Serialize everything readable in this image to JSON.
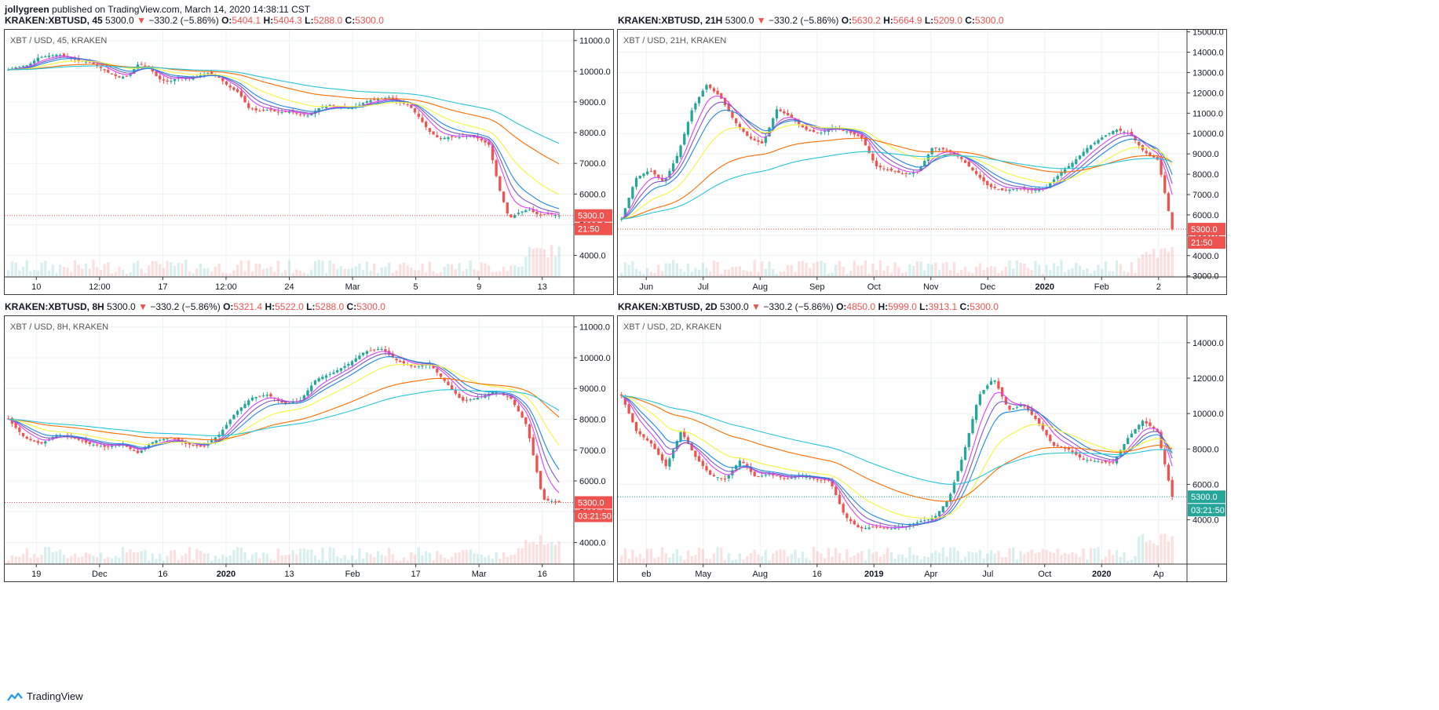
{
  "header": {
    "user": "jollygreen",
    "published": "published on TradingView.com, March 14, 2020 14:38:11 CST"
  },
  "footer": {
    "brand": "TradingView"
  },
  "colors": {
    "down": "#ef5350",
    "up": "#26a69a",
    "ema200": "#26c6da",
    "ema100": "#ff6d00",
    "ema50": "#f5f53b"
  },
  "chart_data": [
    {
      "type": "candlestick",
      "symbol": "KRAKEN:XBTUSD, 45",
      "last": "5300.0",
      "change": "−330.2 (−5.86%)",
      "ohlc": {
        "O": "5404.1",
        "H": "5404.3",
        "L": "5288.0",
        "C": "5300.0"
      },
      "inner_title": "XBT / USD, 45, KRAKEN",
      "y_ticks": [
        "11000.0",
        "10000.0",
        "9000.0",
        "8000.0",
        "7000.0",
        "6000.0",
        "5000.0",
        "4000.0"
      ],
      "ylim": [
        3300,
        11350
      ],
      "x_ticks": [
        "10",
        "12:00",
        "17",
        "12:00",
        "24",
        "Mar",
        "5",
        "9",
        "13"
      ],
      "price_label": "5300.0",
      "countdown": "21:50",
      "label_color": "#ef5350",
      "series_close": [
        10050,
        10150,
        10200,
        10450,
        10500,
        10550,
        10450,
        10350,
        10300,
        10150,
        9950,
        9800,
        9850,
        10250,
        10150,
        9750,
        9650,
        9800,
        9750,
        9850,
        9950,
        9800,
        9500,
        9300,
        8800,
        8700,
        8750,
        8650,
        8700,
        8600,
        8550,
        8800,
        8900,
        8850,
        8800,
        8900,
        9050,
        9100,
        9150,
        9000,
        8900,
        8500,
        8050,
        7800,
        7850,
        7850,
        7900,
        7800,
        7600,
        6200,
        5200,
        5400,
        5500,
        5300,
        5350,
        5300
      ]
    },
    {
      "type": "candlestick",
      "symbol": "KRAKEN:XBTUSD, 21H",
      "last": "5300.0",
      "change": "−330.2 (−5.86%)",
      "ohlc": {
        "O": "5630.2",
        "H": "5664.9",
        "L": "5209.0",
        "C": "5300.0"
      },
      "inner_title": "XBT / USD, 21H, KRAKEN",
      "y_ticks": [
        "15000.0",
        "14000.0",
        "13000.0",
        "12000.0",
        "11000.0",
        "10000.0",
        "9000.0",
        "8000.0",
        "7000.0",
        "6000.0",
        "5000.0",
        "4000.0",
        "3000.0"
      ],
      "ylim": [
        2950,
        15100
      ],
      "x_ticks": [
        "Jun",
        "Jul",
        "Aug",
        "Sep",
        "Oct",
        "Nov",
        "Dec",
        "2020",
        "Feb",
        "2"
      ],
      "price_label": "5300.0",
      "countdown": "21:50",
      "label_color": "#ef5350",
      "series_close": [
        5800,
        7800,
        8200,
        7600,
        9000,
        11200,
        12400,
        11800,
        10600,
        9800,
        9500,
        11200,
        10800,
        10200,
        10000,
        10300,
        10100,
        9800,
        8400,
        8200,
        8000,
        8100,
        9300,
        9200,
        8800,
        8100,
        7400,
        7200,
        7300,
        7200,
        7300,
        8000,
        8600,
        9300,
        9800,
        10200,
        10000,
        9100,
        8700,
        5300
      ]
    },
    {
      "type": "candlestick",
      "symbol": "KRAKEN:XBTUSD, 8H",
      "last": "5300.0",
      "change": "−330.2 (−5.86%)",
      "ohlc": {
        "O": "5321.4",
        "H": "5522.0",
        "L": "5288.0",
        "C": "5300.0"
      },
      "inner_title": "XBT / USD, 8H, KRAKEN",
      "y_ticks": [
        "11000.0",
        "10000.0",
        "9000.0",
        "8000.0",
        "7000.0",
        "6000.0",
        "5000.0",
        "4000.0"
      ],
      "ylim": [
        3300,
        11350
      ],
      "x_ticks": [
        "19",
        "Dec",
        "16",
        "2020",
        "13",
        "Feb",
        "17",
        "Mar",
        "16"
      ],
      "price_label": "5300.0",
      "countdown": "03:21:50",
      "label_color": "#ef5350",
      "series_close": [
        8000,
        7400,
        7200,
        7500,
        7400,
        7200,
        7100,
        7200,
        6900,
        7300,
        7400,
        7200,
        7100,
        7500,
        8200,
        8700,
        8800,
        8500,
        8600,
        9300,
        9500,
        9800,
        10200,
        10300,
        9900,
        9700,
        9800,
        9200,
        8600,
        8700,
        8900,
        8700,
        7800,
        5400,
        5300
      ]
    },
    {
      "type": "candlestick",
      "symbol": "KRAKEN:XBTUSD, 2D",
      "last": "5300.0",
      "change": "−330.2 (−5.86%)",
      "ohlc": {
        "O": "4850.0",
        "H": "5999.0",
        "L": "3913.1",
        "C": "5300.0"
      },
      "inner_title": "XBT / USD, 2D, KRAKEN",
      "y_ticks": [
        "14000.0",
        "12000.0",
        "10000.0",
        "8000.0",
        "6000.0",
        "4000.0"
      ],
      "ylim": [
        1500,
        15500
      ],
      "x_ticks": [
        "eb",
        "May",
        "Aug",
        "16",
        "2019",
        "Apr",
        "Jul",
        "Oct",
        "2020",
        "Ap"
      ],
      "price_label": "5300.0",
      "countdown": "03:21:50",
      "label_color": "#26a69a",
      "series_close": [
        11000,
        9000,
        8300,
        7000,
        9000,
        7500,
        6500,
        6300,
        7400,
        6400,
        6600,
        6300,
        6500,
        6300,
        6200,
        4200,
        3500,
        3600,
        3500,
        3600,
        3900,
        4100,
        5200,
        7800,
        11000,
        12000,
        10200,
        10500,
        9500,
        8200,
        8000,
        7400,
        7300,
        7200,
        8600,
        9600,
        9000,
        5300
      ]
    }
  ]
}
